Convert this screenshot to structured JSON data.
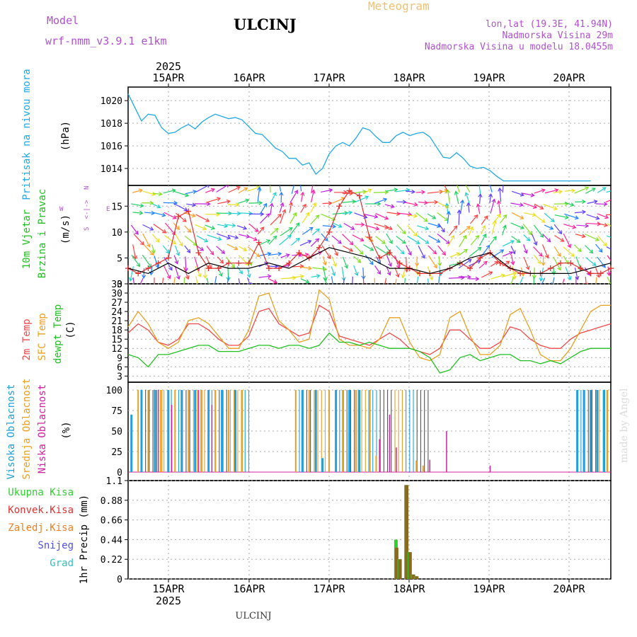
{
  "header": {
    "title": "ULCINJ",
    "meteogram_label": "Meteogram",
    "model_label": "Model",
    "model_name": "wrf-nmm_v3.9.1 e1km",
    "lonlat": "lon,lat (19.3E, 41.94N)",
    "elevation": "Nadmorska Visina 29m",
    "model_elevation": "Nadmorska Visina u modelu 18.0455m",
    "footer_station": "ULCINJ",
    "watermark": "made by Angel"
  },
  "axis": {
    "year": "2025",
    "dates": [
      "15APR",
      "16APR",
      "17APR",
      "18APR",
      "19APR",
      "20APR"
    ]
  },
  "panels": {
    "pressure": {
      "ylabel": "Pritisak na nivou mora",
      "unit": "(hPa)",
      "ticks": [
        "1020",
        "1018",
        "1016",
        "1014"
      ]
    },
    "wind": {
      "ylabel1": "10m Vjetar",
      "ylabel2": "Brzina i Pravac",
      "unit": "(m/s)",
      "ticks": [
        "15",
        "10",
        "5",
        "0"
      ],
      "compass_n": "N",
      "compass_s": "S",
      "compass_e": "E",
      "compass_w": "W",
      "compass_line": "<-|->"
    },
    "temp": {
      "ylabel1": "2m Temp",
      "ylabel2": "SFC Temp",
      "ylabel3": "dewpt Temp",
      "unit": "(C)",
      "ticks": [
        "33",
        "30",
        "27",
        "24",
        "21",
        "18",
        "15",
        "12",
        "9",
        "6",
        "3"
      ]
    },
    "cloud": {
      "ylabel1": "Visoka Oblacnost",
      "ylabel2": "Srednja Oblacnost",
      "ylabel3": "Niska Oblacnost",
      "unit": "(%)",
      "ticks": [
        "100",
        "75",
        "50",
        "25",
        "0"
      ]
    },
    "precip": {
      "legend": [
        "Ukupna Kisa",
        "Konvek.Kisa",
        "Zaledj.Kisa",
        "Snijeg",
        "Grad"
      ],
      "ylabel": "1hr Precip (mm)",
      "ticks": [
        "1.1",
        "0.88",
        "0.66",
        "0.44",
        "0.22",
        "0"
      ]
    }
  },
  "colors": {
    "pressure": "#20a8e8",
    "temp2m": "#f04848",
    "sfc": "#e8a020",
    "dewpt": "#20c020",
    "high_cloud": "#20a0e0",
    "mid_cloud": "#e8a020",
    "low_cloud": "#d020a0",
    "total_rain": "#30d030",
    "conv_rain": "#d02020",
    "frz_rain": "#f08020",
    "snow": "#5050e0",
    "hail": "#30c0c0",
    "model_purple": "#b050d0",
    "title_orange": "#f0c070"
  },
  "chart_data": [
    {
      "type": "line",
      "title": "Pritisak na nivou mora",
      "ylabel": "(hPa)",
      "ylim": [
        1012.5,
        1021.2
      ],
      "xlim": [
        0,
        144
      ],
      "x_unit": "hours from 14APR 12UTC",
      "series": [
        {
          "name": "Pritisak na nivou mora",
          "x": [
            0,
            2,
            4,
            6,
            8,
            10,
            12,
            14,
            16,
            18,
            20,
            22,
            24,
            26,
            28,
            30,
            32,
            34,
            36,
            38,
            40,
            42,
            44,
            46,
            48,
            50,
            52,
            54,
            56,
            58,
            60,
            62,
            64,
            66,
            68,
            70,
            72,
            74,
            76,
            78,
            80,
            82,
            84,
            86,
            88,
            90,
            92,
            94,
            96,
            98,
            100,
            102,
            104,
            106,
            108,
            110,
            112,
            114,
            116,
            118,
            120,
            122,
            124,
            126,
            128,
            130,
            132,
            134,
            136,
            138,
            140,
            142,
            144
          ],
          "y": [
            1020.6,
            1019.4,
            1018.2,
            1018.8,
            1018.7,
            1017.6,
            1017.1,
            1017.2,
            1017.6,
            1017.9,
            1017.5,
            1018.1,
            1018.5,
            1018.8,
            1018.6,
            1018.4,
            1018.5,
            1018.3,
            1017.7,
            1017.1,
            1017.0,
            1016.4,
            1015.8,
            1015.5,
            1014.9,
            1014.9,
            1014.3,
            1014.5,
            1013.5,
            1014.0,
            1015.3,
            1016.0,
            1016.3,
            1016.0,
            1016.7,
            1017.6,
            1017.4,
            1016.8,
            1016.3,
            1016.3,
            1016.9,
            1017.2,
            1016.9,
            1017.1,
            1017.2,
            1016.8,
            1015.9,
            1015.0,
            1014.9,
            1015.4,
            1014.9,
            1014.2,
            1014.0,
            1014.1,
            1013.8,
            1013.3,
            1012.9,
            1012.9,
            1012.9,
            1012.9,
            1012.9,
            1012.9,
            1012.9,
            1012.9,
            1012.9,
            1012.9,
            1012.9,
            1012.9,
            1012.9,
            1012.9,
            1012.9,
            1012.9,
            1012.9
          ]
        }
      ]
    },
    {
      "type": "line",
      "title": "10m Vjetar",
      "ylabel": "(m/s)",
      "ylim": [
        0,
        19
      ],
      "xlim": [
        0,
        144
      ],
      "series": [
        {
          "name": "speed",
          "x": [
            0,
            3,
            6,
            9,
            12,
            15,
            18,
            21,
            24,
            27,
            30,
            33,
            36,
            39,
            42,
            45,
            48,
            51,
            54,
            57,
            60,
            63,
            66,
            69,
            72,
            75,
            78,
            81,
            84,
            87,
            90,
            93,
            96,
            99,
            102,
            105,
            108,
            111,
            114,
            117,
            120,
            123,
            126,
            129,
            132,
            135,
            138,
            141,
            144
          ],
          "y": [
            3,
            2,
            3,
            4,
            5,
            13,
            14,
            6,
            3,
            3,
            4,
            4,
            4,
            8,
            3,
            3,
            4,
            6,
            5,
            7,
            10,
            15,
            18,
            17,
            9,
            5,
            6,
            4,
            3,
            2,
            2,
            2,
            3,
            4,
            3,
            5,
            6,
            4,
            3,
            2,
            2,
            2,
            3,
            4,
            4,
            3,
            2,
            2,
            3
          ]
        },
        {
          "name": "gust",
          "x": [
            0,
            6,
            12,
            18,
            24,
            30,
            36,
            42,
            48,
            54,
            60,
            66,
            72,
            78,
            84,
            90,
            96,
            102,
            108,
            114,
            120,
            126,
            132,
            138,
            144
          ],
          "y": [
            3,
            2,
            4,
            2,
            4,
            3,
            3,
            4,
            3,
            5,
            7,
            6,
            5,
            3,
            3,
            2,
            3,
            5,
            6,
            3,
            2,
            2,
            2,
            3,
            4
          ]
        }
      ]
    },
    {
      "type": "line",
      "title": "2m Temp / SFC Temp / dewpt Temp",
      "ylabel": "(C)",
      "ylim": [
        1,
        33
      ],
      "xlim": [
        0,
        144
      ],
      "series": [
        {
          "name": "2m Temp",
          "x": [
            0,
            3,
            6,
            9,
            12,
            15,
            18,
            21,
            24,
            27,
            30,
            33,
            36,
            39,
            42,
            45,
            48,
            51,
            54,
            57,
            60,
            63,
            66,
            69,
            72,
            75,
            78,
            81,
            84,
            87,
            90,
            93,
            96,
            99,
            102,
            105,
            108,
            111,
            114,
            117,
            120,
            123,
            126,
            129,
            132,
            135,
            138,
            141,
            144
          ],
          "y": [
            17,
            20,
            18,
            14,
            13,
            15,
            20,
            20,
            18,
            15,
            13,
            13,
            16,
            24,
            25,
            20,
            18,
            16,
            17,
            26,
            24,
            16,
            15,
            14,
            13,
            15,
            17,
            15,
            12,
            11,
            10,
            12,
            18,
            18,
            15,
            12,
            12,
            14,
            19,
            18,
            15,
            13,
            12,
            12,
            15,
            17,
            18,
            19,
            20
          ]
        },
        {
          "name": "SFC Temp",
          "x": [
            0,
            3,
            6,
            9,
            12,
            15,
            18,
            21,
            24,
            27,
            30,
            33,
            36,
            39,
            42,
            45,
            48,
            51,
            54,
            57,
            60,
            63,
            66,
            69,
            72,
            75,
            78,
            81,
            84,
            87,
            90,
            93,
            96,
            99,
            102,
            105,
            108,
            111,
            114,
            117,
            120,
            123,
            126,
            129,
            132,
            135,
            138,
            141,
            144
          ],
          "y": [
            19,
            24,
            20,
            14,
            12,
            14,
            21,
            22,
            20,
            16,
            12,
            12,
            18,
            29,
            30,
            21,
            18,
            14,
            15,
            31,
            28,
            15,
            13,
            13,
            12,
            15,
            22,
            22,
            14,
            9,
            8,
            10,
            22,
            24,
            16,
            10,
            10,
            13,
            23,
            25,
            18,
            10,
            8,
            8,
            12,
            18,
            24,
            26,
            26
          ]
        },
        {
          "name": "dewpt Temp",
          "x": [
            0,
            3,
            6,
            9,
            12,
            15,
            18,
            21,
            24,
            27,
            30,
            33,
            36,
            39,
            42,
            45,
            48,
            51,
            54,
            57,
            60,
            63,
            66,
            69,
            72,
            75,
            78,
            81,
            84,
            87,
            90,
            93,
            96,
            99,
            102,
            105,
            108,
            111,
            114,
            117,
            120,
            123,
            126,
            129,
            132,
            135,
            138,
            141,
            144
          ],
          "y": [
            10,
            9,
            6,
            10,
            10,
            11,
            12,
            13,
            13,
            11,
            11,
            11,
            12,
            13,
            13,
            12,
            13,
            13,
            12,
            13,
            17,
            14,
            14,
            13,
            14,
            13,
            12,
            12,
            12,
            11,
            9,
            4,
            5,
            9,
            10,
            8,
            9,
            10,
            10,
            8,
            8,
            7,
            8,
            7,
            9,
            11,
            12,
            12,
            12
          ]
        }
      ]
    },
    {
      "type": "bar",
      "title": "Oblacnost",
      "ylabel": "(%)",
      "ylim": [
        0,
        100
      ],
      "xlim": [
        0,
        144
      ],
      "series": [
        {
          "name": "Visoka Oblacnost",
          "x": [
            1,
            4,
            8,
            12,
            16,
            20,
            24,
            28,
            32,
            52,
            56,
            58,
            62,
            66,
            69,
            72,
            76,
            80,
            84,
            88,
            134,
            136,
            138,
            140,
            142
          ],
          "y": [
            70,
            100,
            100,
            100,
            100,
            100,
            100,
            100,
            100,
            100,
            100,
            17,
            100,
            100,
            100,
            100,
            0,
            0,
            0,
            0,
            100,
            100,
            100,
            100,
            100
          ]
        },
        {
          "name": "Srednja Oblacnost",
          "x": [
            3,
            6,
            10,
            14,
            18,
            22,
            26,
            30,
            34,
            50,
            54,
            60,
            64,
            68,
            72,
            74,
            86,
            88,
            143
          ],
          "y": [
            100,
            100,
            100,
            100,
            100,
            100,
            100,
            100,
            100,
            100,
            100,
            100,
            100,
            100,
            100,
            20,
            14,
            8,
            100
          ]
        },
        {
          "name": "Niska Oblacnost",
          "x": [
            9,
            13,
            21,
            25,
            75,
            78,
            80,
            90,
            95,
            108
          ],
          "y": [
            100,
            82,
            100,
            82,
            40,
            70,
            30,
            15,
            50,
            8
          ]
        }
      ]
    },
    {
      "type": "bar",
      "title": "1hr Precip",
      "ylabel": "1hr Precip (mm)",
      "ylim": [
        0,
        1.1
      ],
      "xlim": [
        0,
        144
      ],
      "series": [
        {
          "name": "Ukupna Kisa",
          "x": [
            80,
            81,
            82,
            83,
            84,
            85,
            86
          ],
          "y": [
            0.44,
            0.22,
            0,
            1.05,
            0.3,
            0.05,
            0.03
          ]
        },
        {
          "name": "Konvek.Kisa",
          "x": [
            80,
            81,
            82,
            83,
            84,
            85,
            86
          ],
          "y": [
            0.35,
            0.22,
            0,
            1.05,
            0.3,
            0.05,
            0.03
          ]
        }
      ]
    }
  ]
}
